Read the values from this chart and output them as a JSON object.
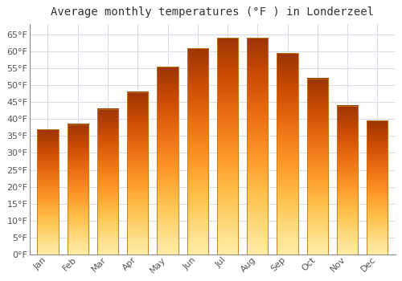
{
  "title": "Average monthly temperatures (°F ) in Londerzeel",
  "months": [
    "Jan",
    "Feb",
    "Mar",
    "Apr",
    "May",
    "Jun",
    "Jul",
    "Aug",
    "Sep",
    "Oct",
    "Nov",
    "Dec"
  ],
  "values": [
    37,
    38.5,
    43,
    48,
    55.5,
    61,
    64,
    64,
    59.5,
    52,
    44,
    39.5
  ],
  "bar_color": "#FFA500",
  "bar_edge_color": "#C8780A",
  "ylim": [
    0,
    68
  ],
  "yticks": [
    0,
    5,
    10,
    15,
    20,
    25,
    30,
    35,
    40,
    45,
    50,
    55,
    60,
    65
  ],
  "background_color": "#FFFFFF",
  "plot_bg_color": "#FFFFFF",
  "grid_color": "#D8DCE8",
  "title_fontsize": 10,
  "tick_fontsize": 8,
  "title_color": "#333333",
  "tick_color": "#555555"
}
